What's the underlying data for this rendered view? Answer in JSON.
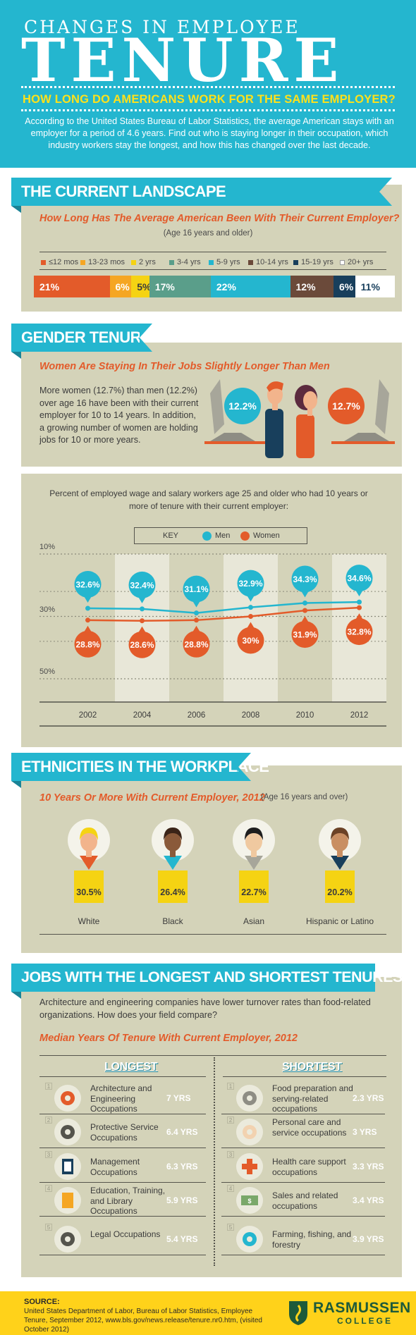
{
  "header": {
    "title_small": "CHANGES IN EMPLOYEE",
    "title_big": "TENURE",
    "question": "HOW LONG DO AMERICANS WORK FOR THE SAME EMPLOYER?",
    "intro": "According to the United States Bureau of Labor Statistics, the average American stays with an employer for a period of 4.6 years. Find out who is staying longer in their occupation, which industry workers stay the longest, and how this has changed over the last decade."
  },
  "landscape": {
    "banner": "THE CURRENT LANDSCAPE",
    "subtitle": "How Long Has The Average American Been With Their Current Employer?",
    "note": "(Age 16 years and older)",
    "legend": [
      "≤12 mos",
      "13-23 mos",
      "2 yrs",
      "3-4 yrs",
      "5-9 yrs",
      "10-14 yrs",
      "15-19 yrs",
      "20+ yrs"
    ],
    "bar_labels": [
      "21%",
      "6%",
      "5%",
      "17%",
      "22%",
      "12%",
      "6%",
      "11%"
    ]
  },
  "gender": {
    "banner": "GENDER TENURE",
    "subtitle": "Women Are Staying In Their Jobs Slightly Longer Than Men",
    "text": "More women (12.7%) than men (12.2%) over age 16 have been with their current employer for 10 to 14 years. In addition, a growing number of women are holding jobs for 10 or more years.",
    "men_value": "12.2%",
    "women_value": "12.7%",
    "chart_title": "Percent of employed wage and salary workers age 25 and older who had 10 years or more of tenure with their current employer:",
    "key_label": "KEY",
    "men_label": "Men",
    "women_label": "Women",
    "y_ticks": [
      "50%",
      "30%",
      "10%"
    ],
    "x_ticks": [
      "2002",
      "2004",
      "2006",
      "2008",
      "2010",
      "2012"
    ],
    "men_labels": [
      "32.6%",
      "32.4%",
      "31.1%",
      "32.9%",
      "34.3%",
      "34.6%"
    ],
    "women_labels": [
      "28.8%",
      "28.6%",
      "28.8%",
      "30%",
      "31.9%",
      "32.8%"
    ]
  },
  "ethnicity": {
    "banner": "ETHNICITIES IN THE WORKPLACE",
    "subtitle": "10 Years Or More With Current Employer, 2012",
    "note": "(Age 16 years and over)",
    "values": [
      "30.5%",
      "26.4%",
      "22.7%",
      "20.2%"
    ],
    "labels": [
      "White",
      "Black",
      "Asian",
      "Hispanic or Latino"
    ]
  },
  "jobs": {
    "banner": "JOBS WITH THE LONGEST AND SHORTEST TENURES",
    "intro": "Architecture and engineering companies have lower turnover rates than food-related organizations. How does your field compare?",
    "subtitle": "Median Years Of Tenure With Current Employer, 2012",
    "longest_heading": "LONGEST",
    "shortest_heading": "SHORTEST",
    "longest": [
      {
        "num": "1",
        "name": "Architecture and Engineering Occupations",
        "years": "7 YRS"
      },
      {
        "num": "2",
        "name": "Protective Service Occupations",
        "years": "6.4 YRS"
      },
      {
        "num": "3",
        "name": "Management Occupations",
        "years": "6.3 YRS"
      },
      {
        "num": "4",
        "name": "Education, Training, and Library Occupations",
        "years": "5.9 YRS"
      },
      {
        "num": "5",
        "name": "Legal Occupations",
        "years": "5.4 YRS"
      }
    ],
    "shortest": [
      {
        "num": "1",
        "name": "Food preparation and serving-related occupations",
        "years": "2.3 YRS"
      },
      {
        "num": "2",
        "name": "Personal care and service occupations",
        "years": "3 YRS"
      },
      {
        "num": "3",
        "name": "Health care support occupations",
        "years": "3.3 YRS"
      },
      {
        "num": "4",
        "name": "Sales and related occupations",
        "years": "3.4 YRS"
      },
      {
        "num": "5",
        "name": "Farming, fishing, and forestry",
        "years": "3.9 YRS"
      }
    ]
  },
  "footer": {
    "source_label": "SOURCE:",
    "source_text": "United States Department of Labor, Bureau of Labor Statistics, Employee Tenure, September 2012, www.bls.gov/news.release/tenure.nr0.htm, (visited October 2012)",
    "brand_name": "RASMUSSEN",
    "brand_sub": "COLLEGE"
  },
  "colors": {
    "header_bg": "#24b6cf",
    "panel_bg": "#d4d3b9",
    "accent_orange": "#e35b2a",
    "accent_yellow": "#f5d313",
    "men_color": "#24b6cf",
    "women_color": "#e35b2a",
    "footer_bg": "#ffd21a",
    "dark_navy": "#183f5c"
  },
  "chart_data": [
    {
      "type": "bar",
      "title": "How Long Has The Average American Been With Their Current Employer?",
      "categories": [
        "≤12 mos",
        "13-23 mos",
        "2 yrs",
        "3-4 yrs",
        "5-9 yrs",
        "10-14 yrs",
        "15-19 yrs",
        "20+ yrs"
      ],
      "values": [
        21,
        6,
        5,
        17,
        22,
        12,
        6,
        11
      ],
      "colors": [
        "#e35b2a",
        "#f5a623",
        "#f5d313",
        "#5a9e8a",
        "#24b6cf",
        "#6b4a3a",
        "#183f5c",
        "#ffffff"
      ],
      "stacked": true
    },
    {
      "type": "line",
      "title": "Percent of employed wage and salary workers age 25 and older who had 10 years or more of tenure with their current employer:",
      "x": [
        2002,
        2004,
        2006,
        2008,
        2010,
        2012
      ],
      "series": [
        {
          "name": "Men",
          "values": [
            32.6,
            32.4,
            31.1,
            32.9,
            34.3,
            34.6
          ]
        },
        {
          "name": "Women",
          "values": [
            28.8,
            28.6,
            28.8,
            30,
            31.9,
            32.8
          ]
        }
      ],
      "ylim": [
        0,
        50
      ],
      "yticks": [
        10,
        30,
        50
      ],
      "grid": true,
      "legend": "top"
    },
    {
      "type": "bar",
      "title": "10 Years Or More With Current Employer, 2012",
      "categories": [
        "White",
        "Black",
        "Asian",
        "Hispanic or Latino"
      ],
      "values": [
        30.5,
        26.4,
        22.7,
        20.2
      ]
    },
    {
      "type": "table",
      "title": "Median Years Of Tenure With Current Employer, 2012",
      "series": [
        {
          "name": "LONGEST",
          "categories": [
            "Architecture and Engineering Occupations",
            "Protective Service Occupations",
            "Management Occupations",
            "Education, Training, and Library Occupations",
            "Legal Occupations"
          ],
          "values": [
            7,
            6.4,
            6.3,
            5.9,
            5.4
          ]
        },
        {
          "name": "SHORTEST",
          "categories": [
            "Food preparation and serving-related occupations",
            "Personal care and service occupations",
            "Health care support occupations",
            "Sales and related occupations",
            "Farming, fishing, and forestry"
          ],
          "values": [
            2.3,
            3,
            3.3,
            3.4,
            3.9
          ]
        }
      ]
    }
  ]
}
